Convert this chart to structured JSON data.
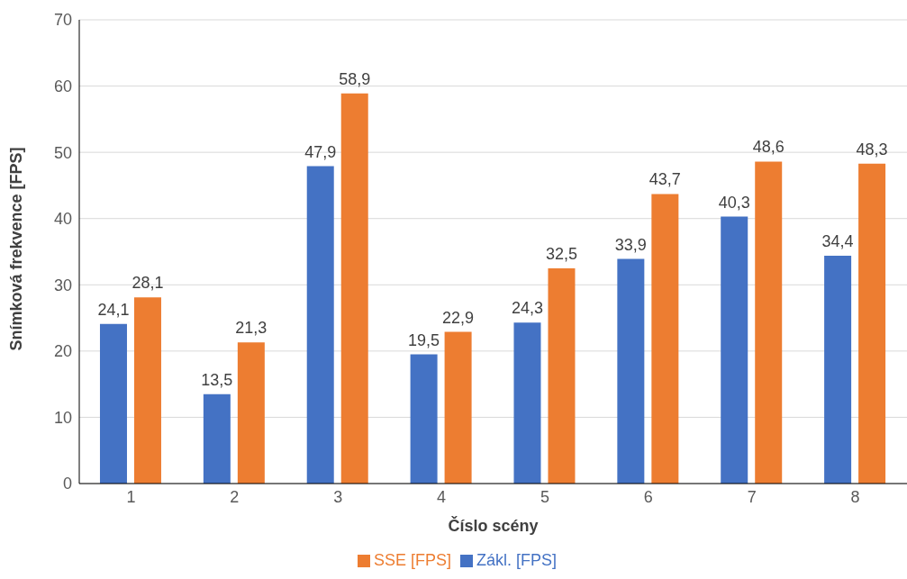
{
  "chart_data": {
    "type": "bar",
    "xlabel": "Číslo scény",
    "ylabel": "Snímková frekvence [FPS]",
    "categories": [
      "1",
      "2",
      "3",
      "4",
      "5",
      "6",
      "7",
      "8"
    ],
    "series": [
      {
        "name": "Zákl. [FPS]",
        "color": "#4472c4",
        "values": [
          24.1,
          13.5,
          47.9,
          19.5,
          24.3,
          33.9,
          40.3,
          34.4
        ],
        "value_labels": [
          "24,1",
          "13,5",
          "47,9",
          "19,5",
          "24,3",
          "33,9",
          "40,3",
          "34,4"
        ]
      },
      {
        "name": "SSE [FPS]",
        "color": "#ed7d31",
        "values": [
          28.1,
          21.3,
          58.9,
          22.9,
          32.5,
          43.7,
          48.6,
          48.3
        ],
        "value_labels": [
          "28,1",
          "21,3",
          "58,9",
          "22,9",
          "32,5",
          "43,7",
          "48,6",
          "48,3"
        ]
      }
    ],
    "ylim": [
      0,
      70
    ],
    "yticks": [
      0,
      10,
      20,
      30,
      40,
      50,
      60,
      70
    ],
    "grid": "y",
    "legend": "bottom"
  }
}
